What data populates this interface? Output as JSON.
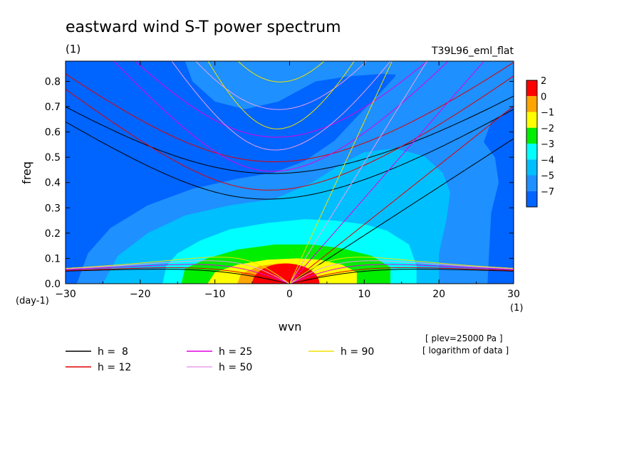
{
  "chart_data": {
    "type": "heatmap",
    "title": "eastward wind S-T power spectrum",
    "subtitle_left": "(1)",
    "subtitle_right": "T39L96_eml_flat",
    "xlabel": "wvn",
    "ylabel": "freq",
    "xunit": "(1)",
    "yunit": "(day-1)",
    "xlim": [
      -30,
      30
    ],
    "ylim": [
      0,
      0.88
    ],
    "xticks": [
      -30,
      -20,
      -10,
      0,
      10,
      20,
      30
    ],
    "xtick_labels": [
      "−30",
      "−20",
      "−10",
      "0",
      "10",
      "20",
      "30"
    ],
    "yticks": [
      0,
      0.1,
      0.2,
      0.3,
      0.4,
      0.5,
      0.6,
      0.7,
      0.8
    ],
    "ytick_labels": [
      "0.0",
      "0.1",
      "0.2",
      "0.3",
      "0.4",
      "0.5",
      "0.6",
      "0.7",
      "0.8"
    ],
    "notes": [
      "[ plev=25000 Pa ]",
      "[ logarithm of data ]"
    ],
    "colorbar": {
      "labels": [
        "2",
        "0",
        "−1",
        "−2",
        "−3",
        "−4",
        "−5",
        "−7"
      ],
      "colors": [
        "#ff0000",
        "#ffa500",
        "#ffff00",
        "#00ee00",
        "#00ffff",
        "#00bfff",
        "#1e90ff",
        "#0064ff"
      ]
    },
    "contours": [
      {
        "level": "-5",
        "color": "#1e90ff",
        "points": [
          [
            -28.5,
            0
          ],
          [
            -27,
            0.12
          ],
          [
            -24,
            0.22
          ],
          [
            -19,
            0.31
          ],
          [
            -13,
            0.375
          ],
          [
            -7,
            0.415
          ],
          [
            -2,
            0.44
          ],
          [
            2,
            0.485
          ],
          [
            6,
            0.565
          ],
          [
            9,
            0.66
          ],
          [
            12,
            0.75
          ],
          [
            14,
            0.815
          ],
          [
            15.5,
            0.88
          ],
          [
            22,
            0.88
          ],
          [
            21,
            0.86
          ],
          [
            17,
            0.82
          ],
          [
            12.5,
            0.83
          ],
          [
            8,
            0.82
          ],
          [
            3.5,
            0.8
          ],
          [
            -1.5,
            0.72
          ],
          [
            -6,
            0.69
          ],
          [
            -10,
            0.72
          ],
          [
            -13,
            0.8
          ],
          [
            -14,
            0.88
          ],
          [
            30,
            0.88
          ],
          [
            30,
            0.7
          ],
          [
            27,
            0.64
          ],
          [
            26,
            0.56
          ],
          [
            27.5,
            0.5
          ],
          [
            28,
            0.4
          ],
          [
            27,
            0.28
          ],
          [
            26.5,
            0
          ],
          [
            -28.5,
            0
          ]
        ]
      },
      {
        "level": "-4",
        "color": "#00bfff",
        "points": [
          [
            -25,
            0
          ],
          [
            -23,
            0.11
          ],
          [
            -19,
            0.2
          ],
          [
            -14,
            0.27
          ],
          [
            -8,
            0.31
          ],
          [
            -2,
            0.335
          ],
          [
            3,
            0.4
          ],
          [
            7,
            0.475
          ],
          [
            10,
            0.52
          ],
          [
            14,
            0.535
          ],
          [
            18,
            0.505
          ],
          [
            20.5,
            0.44
          ],
          [
            21.5,
            0.36
          ],
          [
            21,
            0.25
          ],
          [
            20,
            0.12
          ],
          [
            20,
            0
          ],
          [
            -25,
            0
          ]
        ]
      },
      {
        "level": "-3",
        "color": "#00ffff",
        "points": [
          [
            -17,
            0
          ],
          [
            -16.5,
            0.07
          ],
          [
            -15,
            0.12
          ],
          [
            -12,
            0.17
          ],
          [
            -8,
            0.215
          ],
          [
            -3,
            0.24
          ],
          [
            2,
            0.255
          ],
          [
            6,
            0.25
          ],
          [
            10,
            0.235
          ],
          [
            13,
            0.21
          ],
          [
            16,
            0.155
          ],
          [
            17,
            0.07
          ],
          [
            17,
            0
          ],
          [
            -17,
            0
          ]
        ]
      },
      {
        "level": "-2",
        "color": "#00ee00",
        "points": [
          [
            -14.5,
            0
          ],
          [
            -14,
            0.06
          ],
          [
            -11,
            0.1
          ],
          [
            -7,
            0.135
          ],
          [
            -2,
            0.155
          ],
          [
            3,
            0.155
          ],
          [
            7,
            0.14
          ],
          [
            11,
            0.11
          ],
          [
            13.5,
            0.065
          ],
          [
            13.5,
            0
          ],
          [
            -14.5,
            0
          ]
        ]
      },
      {
        "level": "-1",
        "color": "#ffff00",
        "points": [
          [
            -11,
            0
          ],
          [
            -10,
            0.045
          ],
          [
            -7,
            0.075
          ],
          [
            -3,
            0.095
          ],
          [
            1,
            0.1
          ],
          [
            4,
            0.095
          ],
          [
            7,
            0.075
          ],
          [
            9,
            0.045
          ],
          [
            9,
            0
          ],
          [
            -11,
            0
          ]
        ]
      },
      {
        "level": "0",
        "color": "#ffa500",
        "points": [
          [
            -7,
            0
          ],
          [
            -6.5,
            0.04
          ],
          [
            -4,
            0.07
          ],
          [
            -1.5,
            0.08
          ],
          [
            1,
            0.075
          ],
          [
            3,
            0.05
          ],
          [
            4,
            0
          ],
          [
            -7,
            0
          ]
        ]
      }
    ],
    "dispersion_curves": [
      {
        "h": 8,
        "label": "h =  8",
        "color": "#000000"
      },
      {
        "h": 12,
        "label": "h = 12",
        "color": "#e00000"
      },
      {
        "h": 25,
        "label": "h = 25",
        "color": "#e000e0"
      },
      {
        "h": 50,
        "label": "h = 50",
        "color": "#e8a0e8"
      },
      {
        "h": 90,
        "label": "h = 90",
        "color": "#f0e000"
      }
    ],
    "legend_position": "bottom"
  }
}
